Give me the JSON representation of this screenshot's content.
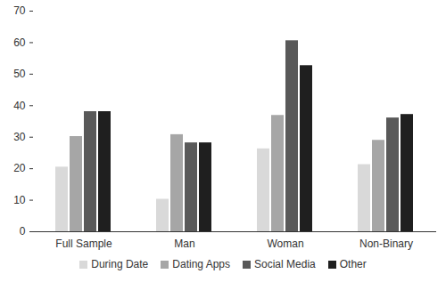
{
  "chart_data": {
    "type": "bar",
    "categories": [
      "Full Sample",
      "Man",
      "Woman",
      "Non-Binary"
    ],
    "series": [
      {
        "name": "During Date",
        "color": "#d9d9d9",
        "values": [
          20.5,
          10.3,
          26.3,
          21.3
        ]
      },
      {
        "name": "Dating Apps",
        "color": "#a6a6a6",
        "values": [
          30.2,
          30.8,
          36.9,
          29.0
        ]
      },
      {
        "name": "Social Media",
        "color": "#595959",
        "values": [
          38.1,
          28.2,
          60.6,
          36.1
        ]
      },
      {
        "name": "Other",
        "color": "#1f1f1f",
        "values": [
          38.1,
          28.2,
          52.7,
          37.2
        ]
      }
    ],
    "ylim": [
      0,
      70
    ],
    "yticks": [
      0,
      10,
      20,
      30,
      40,
      50,
      60,
      70
    ],
    "legend": "bottom",
    "grid": false
  }
}
